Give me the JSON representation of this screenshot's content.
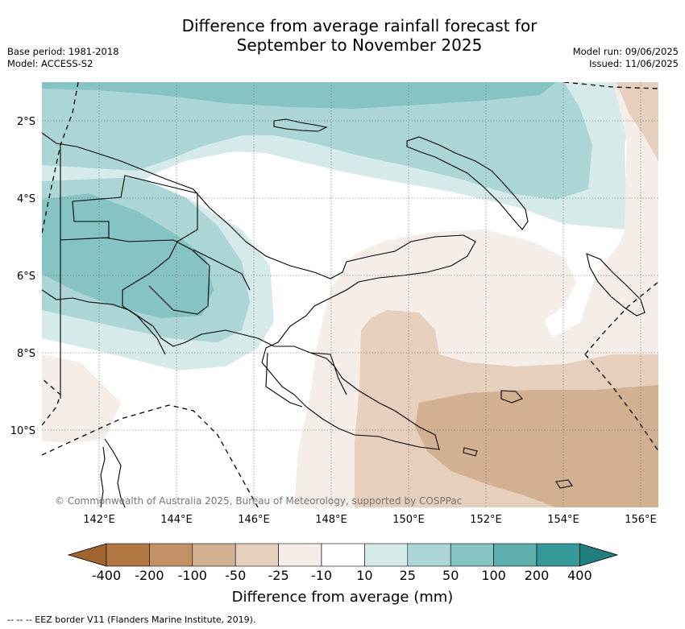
{
  "title_line1": "Difference from average rainfall forecast for",
  "title_line2": "September to November 2025",
  "base_period": "Base period: 1981-2018",
  "model": "Model: ACCESS-S2",
  "model_run": "Model run: 09/06/2025",
  "issued": "Issued: 11/06/2025",
  "copyright": "© Commonwealth of Australia 2025, Bureau of Meteorology, supported by COSPPac",
  "lat_labels": [
    "2°S",
    "4°S",
    "6°S",
    "8°S",
    "10°S"
  ],
  "lon_labels": [
    "142°E",
    "144°E",
    "146°E",
    "148°E",
    "150°E",
    "152°E",
    "154°E",
    "156°E"
  ],
  "colorbar": {
    "title": "Difference from average (mm)",
    "labels": [
      "-400",
      "-200",
      "-100",
      "-50",
      "-25",
      "-10",
      "10",
      "25",
      "50",
      "100",
      "200",
      "400"
    ],
    "colors": [
      "#a0652e",
      "#b27843",
      "#c29266",
      "#d3b091",
      "#e6cfbc",
      "#f5ede8",
      "#ffffff",
      "#d6eaea",
      "#acd6d6",
      "#86c3c3",
      "#5eaeae",
      "#35999a",
      "#227f80"
    ]
  },
  "footnote": "--  --  -- EEZ border V11 (Flanders Marine Institute, 2019)."
}
